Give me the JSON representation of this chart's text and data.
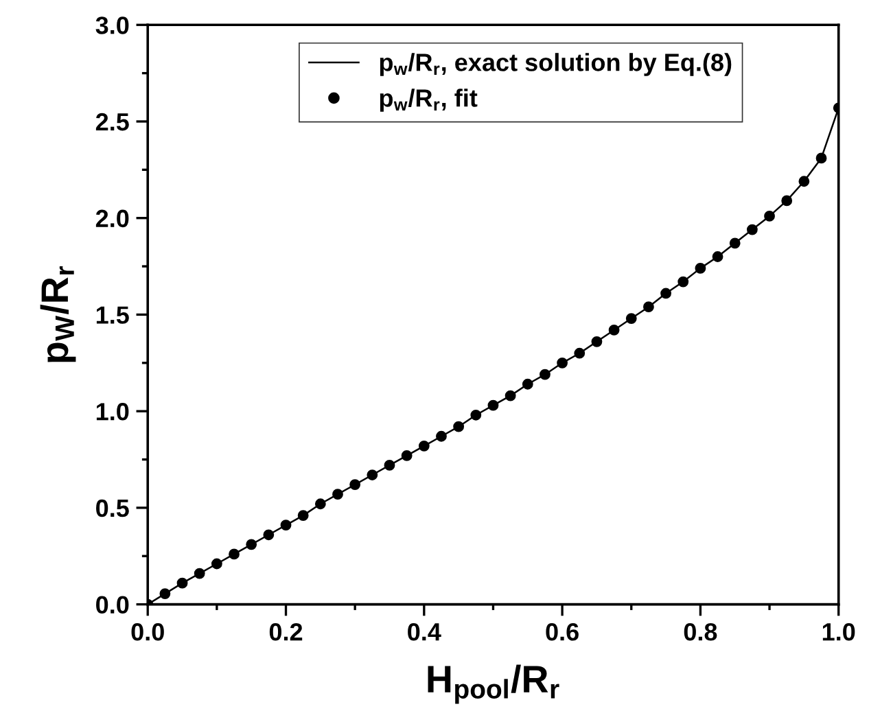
{
  "chart_data": {
    "type": "line",
    "xlabel": "H$_{pool}$/R$_{r}$",
    "ylabel": "p$_{W}$/R$_{r}$",
    "x": [
      0,
      0.025,
      0.05,
      0.075,
      0.1,
      0.125,
      0.15,
      0.175,
      0.2,
      0.225,
      0.25,
      0.275,
      0.3,
      0.325,
      0.35,
      0.375,
      0.4,
      0.425,
      0.45,
      0.475,
      0.5,
      0.525,
      0.55,
      0.575,
      0.6,
      0.625,
      0.65,
      0.675,
      0.7,
      0.725,
      0.75,
      0.775,
      0.8,
      0.825,
      0.85,
      0.875,
      0.9,
      0.925,
      0.95,
      0.975,
      1.0
    ],
    "series": [
      {
        "name": "p$_{w}$/R$_{r}$, exact solution by Eq.(8)",
        "color": "#000000",
        "marker": "none",
        "line_style": "solid",
        "values": [
          0,
          0.055,
          0.11,
          0.16,
          0.21,
          0.26,
          0.31,
          0.36,
          0.41,
          0.46,
          0.52,
          0.57,
          0.62,
          0.67,
          0.72,
          0.77,
          0.82,
          0.87,
          0.92,
          0.98,
          1.03,
          1.08,
          1.14,
          1.19,
          1.25,
          1.3,
          1.36,
          1.42,
          1.48,
          1.54,
          1.61,
          1.67,
          1.74,
          1.8,
          1.87,
          1.94,
          2.01,
          2.09,
          2.19,
          2.31,
          2.57
        ]
      },
      {
        "name": "p$_{w}$/R$_{r}$, fit",
        "type": "scatter",
        "color": "#000000",
        "marker": "circle",
        "values": [
          0,
          0.055,
          0.11,
          0.16,
          0.21,
          0.26,
          0.31,
          0.36,
          0.41,
          0.46,
          0.52,
          0.57,
          0.62,
          0.67,
          0.72,
          0.77,
          0.82,
          0.87,
          0.92,
          0.98,
          1.03,
          1.08,
          1.14,
          1.19,
          1.25,
          1.3,
          1.36,
          1.42,
          1.48,
          1.54,
          1.61,
          1.67,
          1.74,
          1.8,
          1.87,
          1.94,
          2.01,
          2.09,
          2.19,
          2.31,
          2.57
        ]
      }
    ],
    "xlim": [
      0,
      1.0
    ],
    "xticks": [
      {
        "value": 0,
        "label": "0.0"
      },
      0.2,
      0.4,
      0.6,
      0.8,
      {
        "value": 1,
        "label": "1.0"
      }
    ],
    "ylim": [
      0,
      3.0
    ],
    "yticks": [
      {
        "value": 0,
        "label": "0.0"
      },
      0.5,
      {
        "value": 1,
        "label": "1.0"
      },
      1.5,
      {
        "value": 2,
        "label": "2.0"
      },
      2.5,
      {
        "value": 3,
        "label": "3.0"
      }
    ],
    "grid": false,
    "legend": "top"
  }
}
